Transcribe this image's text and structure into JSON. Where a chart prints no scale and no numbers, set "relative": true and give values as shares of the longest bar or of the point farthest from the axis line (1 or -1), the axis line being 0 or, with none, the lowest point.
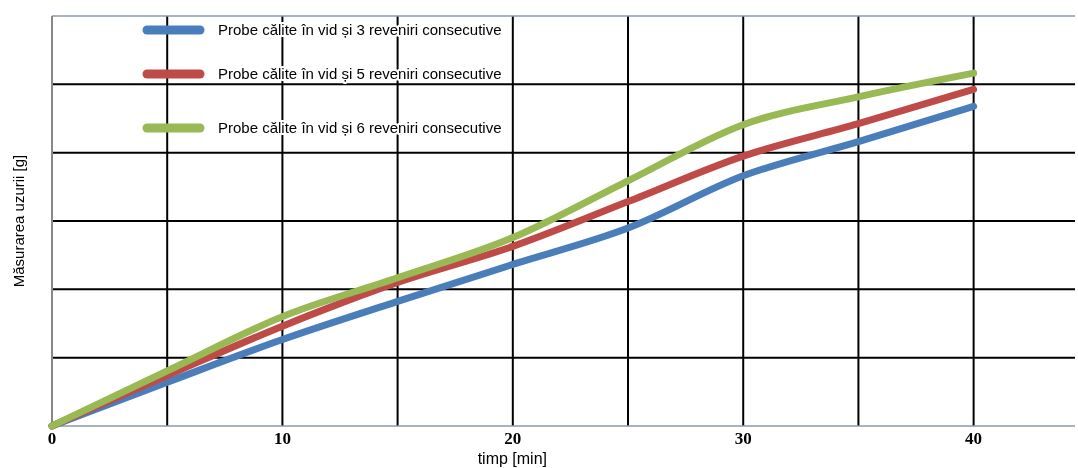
{
  "chart_data": {
    "type": "line",
    "relative": true,
    "xlabel": "timp [min]",
    "ylabel": "Măsurarea uzurii  [g]",
    "x": [
      0,
      5,
      10,
      15,
      20,
      25,
      30,
      35,
      40
    ],
    "xlim": [
      0,
      44.4
    ],
    "xticks": [
      0,
      {
        "value": 5,
        "label": null
      },
      10,
      {
        "value": 15,
        "label": null
      },
      20,
      {
        "value": 25,
        "label": null
      },
      30,
      {
        "value": 35,
        "label": null
      },
      40
    ],
    "grid": true,
    "legend": "top left",
    "line_style": "solid",
    "marker": "none",
    "series": [
      {
        "name": "Probe călite în vid și 3 reveniri consecutive",
        "color": "#4a7ebb",
        "values": [
          0,
          0.124,
          0.245,
          0.353,
          0.458,
          0.561,
          0.709,
          0.806,
          0.906
        ]
      },
      {
        "name": "Probe călite în vid și 5 reveniri consecutive",
        "color": "#be4b48",
        "values": [
          0,
          0.143,
          0.283,
          0.407,
          0.509,
          0.636,
          0.765,
          0.857,
          0.954
        ]
      },
      {
        "name": "Probe călite în vid și 6 reveniri consecutive",
        "color": "#98b954",
        "values": [
          0,
          0.156,
          0.31,
          0.42,
          0.534,
          0.695,
          0.854,
          0.933,
          1
        ]
      }
    ]
  }
}
